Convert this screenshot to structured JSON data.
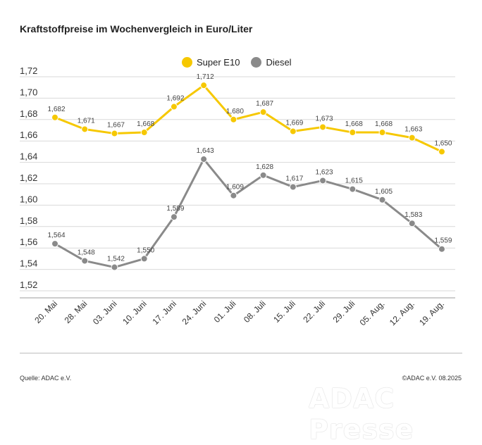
{
  "title": "Kraftstoffpreise im Wochenvergleich in Euro/Liter",
  "source": "Quelle: ADAC e.V.",
  "copyright": "©ADAC e.V. 08.2025",
  "watermark": "ADAC Presse",
  "chart_data": {
    "type": "line",
    "title": "Kraftstoffpreise im Wochenvergleich in Euro/Liter",
    "xlabel": "",
    "ylabel": "",
    "categories": [
      "20. Mai",
      "28. Mai",
      "03. Juni",
      "10. Juni",
      "17. Juni",
      "24. Juni",
      "01. Juli",
      "08. Juli",
      "15. Juli",
      "22. Juli",
      "29. Juli",
      "05. Aug.",
      "12. Aug.",
      "19. Aug."
    ],
    "ylim": [
      1.52,
      1.72
    ],
    "yticks": [
      "1,52",
      "1,54",
      "1,56",
      "1,58",
      "1,60",
      "1,62",
      "1,64",
      "1,66",
      "1,68",
      "1,70",
      "1,72"
    ],
    "grid": true,
    "legend_position": "top-center",
    "series": [
      {
        "name": "Super E10",
        "color": "#f6c800",
        "values": [
          1.682,
          1.671,
          1.667,
          1.668,
          1.692,
          1.712,
          1.68,
          1.687,
          1.669,
          1.673,
          1.668,
          1.668,
          1.663,
          1.65
        ],
        "labels": [
          "1,682",
          "1,671",
          "1,667",
          "1,668",
          "1,692",
          "1,712",
          "1,680",
          "1,687",
          "1,669",
          "1,673",
          "1,668",
          "1,668",
          "1,663",
          "1,650"
        ]
      },
      {
        "name": "Diesel",
        "color": "#8a8a8a",
        "values": [
          1.564,
          1.548,
          1.542,
          1.55,
          1.589,
          1.643,
          1.609,
          1.628,
          1.617,
          1.623,
          1.615,
          1.605,
          1.583,
          1.559
        ],
        "labels": [
          "1,564",
          "1,548",
          "1,542",
          "1,550",
          "1,589",
          "1,643",
          "1,609",
          "1,628",
          "1,617",
          "1,623",
          "1,615",
          "1,605",
          "1,583",
          "1,559"
        ]
      }
    ]
  }
}
